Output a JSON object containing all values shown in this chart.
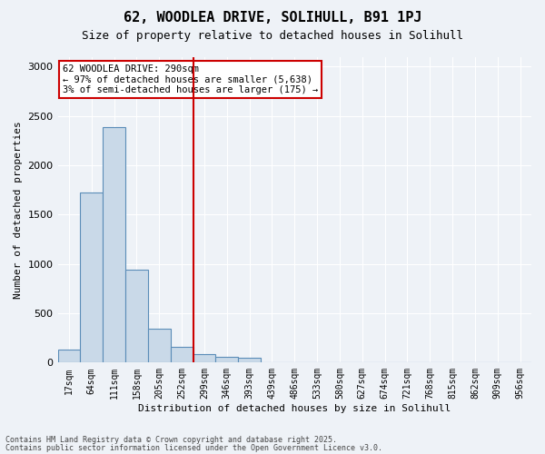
{
  "title1": "62, WOODLEA DRIVE, SOLIHULL, B91 1PJ",
  "title2": "Size of property relative to detached houses in Solihull",
  "xlabel": "Distribution of detached houses by size in Solihull",
  "ylabel": "Number of detached properties",
  "footer1": "Contains HM Land Registry data © Crown copyright and database right 2025.",
  "footer2": "Contains public sector information licensed under the Open Government Licence v3.0.",
  "annotation_line1": "62 WOODLEA DRIVE: 290sqm",
  "annotation_line2": "← 97% of detached houses are smaller (5,638)",
  "annotation_line3": "3% of semi-detached houses are larger (175) →",
  "bin_labels": [
    "17sqm",
    "64sqm",
    "111sqm",
    "158sqm",
    "205sqm",
    "252sqm",
    "299sqm",
    "346sqm",
    "393sqm",
    "439sqm",
    "486sqm",
    "533sqm",
    "580sqm",
    "627sqm",
    "674sqm",
    "721sqm",
    "768sqm",
    "815sqm",
    "862sqm",
    "909sqm",
    "956sqm"
  ],
  "bar_values": [
    130,
    1720,
    2390,
    940,
    340,
    160,
    90,
    60,
    45,
    5,
    5,
    0,
    0,
    0,
    0,
    0,
    0,
    0,
    0,
    0,
    0
  ],
  "bar_color": "#c9d9e8",
  "bar_edge_color": "#5b8db8",
  "vline_color": "#cc0000",
  "vline_x": 5.5,
  "ylim": [
    0,
    3100
  ],
  "yticks": [
    0,
    500,
    1000,
    1500,
    2000,
    2500,
    3000
  ],
  "bg_color": "#eef2f7",
  "grid_color": "#ffffff",
  "annotation_box_color": "#cc0000"
}
